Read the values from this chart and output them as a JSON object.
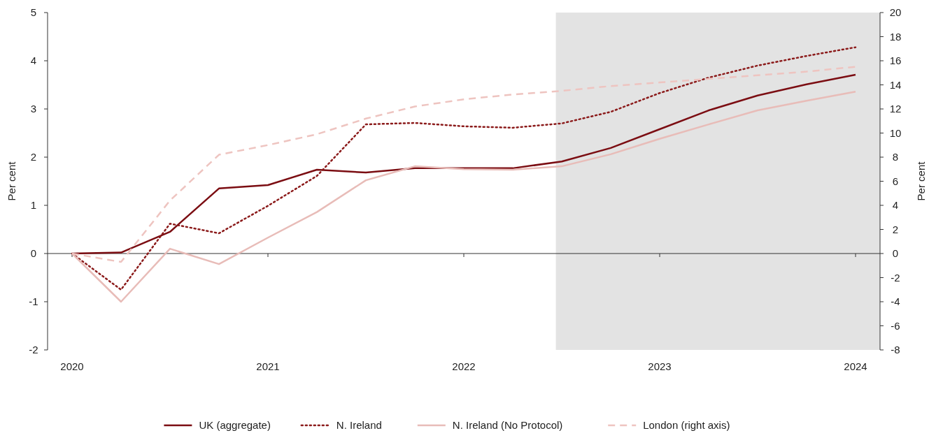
{
  "chart_data": {
    "type": "line",
    "ylabel": "Per cent",
    "y2label": "Per cent",
    "x": [
      2020,
      2020.25,
      2020.5,
      2020.75,
      2021,
      2021.25,
      2021.5,
      2021.75,
      2022,
      2022.25,
      2022.5,
      2022.75,
      2023,
      2023.25,
      2023.5,
      2023.75,
      2024
    ],
    "xlim": [
      2019.875,
      2024.125
    ],
    "xticks": [
      2020,
      2021,
      2022,
      2023,
      2024
    ],
    "ylim": [
      -2,
      5
    ],
    "yticks": [
      -2,
      -1,
      0,
      1,
      2,
      3,
      4,
      5
    ],
    "y2lim": [
      -8,
      20
    ],
    "y2ticks": [
      -8,
      -6,
      -4,
      -2,
      0,
      2,
      4,
      6,
      8,
      10,
      12,
      14,
      16,
      18,
      20
    ],
    "legend": "bottom",
    "marker": "none",
    "bands": [
      {
        "axis": "x",
        "from": 2022.47,
        "to": 2024.125,
        "color": "#e3e3e3"
      }
    ],
    "series": [
      {
        "name": "UK (aggregate)",
        "color": "#7b0d12",
        "line_style": "solid",
        "values": [
          0,
          0.02,
          0.45,
          1.35,
          1.42,
          1.74,
          1.68,
          1.77,
          1.77,
          1.77,
          1.91,
          2.19,
          2.58,
          2.97,
          3.28,
          3.51,
          3.71
        ]
      },
      {
        "name": "N. Ireland",
        "color": "#8b1a1a",
        "line_style": "dotted",
        "values": [
          0,
          -0.75,
          0.62,
          0.42,
          0.99,
          1.61,
          2.68,
          2.71,
          2.64,
          2.61,
          2.7,
          2.94,
          3.33,
          3.65,
          3.9,
          4.1,
          4.28
        ]
      },
      {
        "name": "N. Ireland (No Protocol)",
        "color": "#e8bcb8",
        "line_style": "solid",
        "values": [
          0,
          -1,
          0.1,
          -0.22,
          0.33,
          0.86,
          1.52,
          1.81,
          1.75,
          1.74,
          1.81,
          2.06,
          2.38,
          2.68,
          2.97,
          3.17,
          3.36
        ]
      },
      {
        "name": "London (right axis)",
        "color": "#eec4c0",
        "line_style": "dashed",
        "axis": "y2",
        "values": [
          0,
          -0.7,
          4.4,
          8.2,
          9,
          9.9,
          11.2,
          12.2,
          12.8,
          13.2,
          13.5,
          13.9,
          14.2,
          14.5,
          14.8,
          15.1,
          15.5
        ]
      }
    ]
  }
}
